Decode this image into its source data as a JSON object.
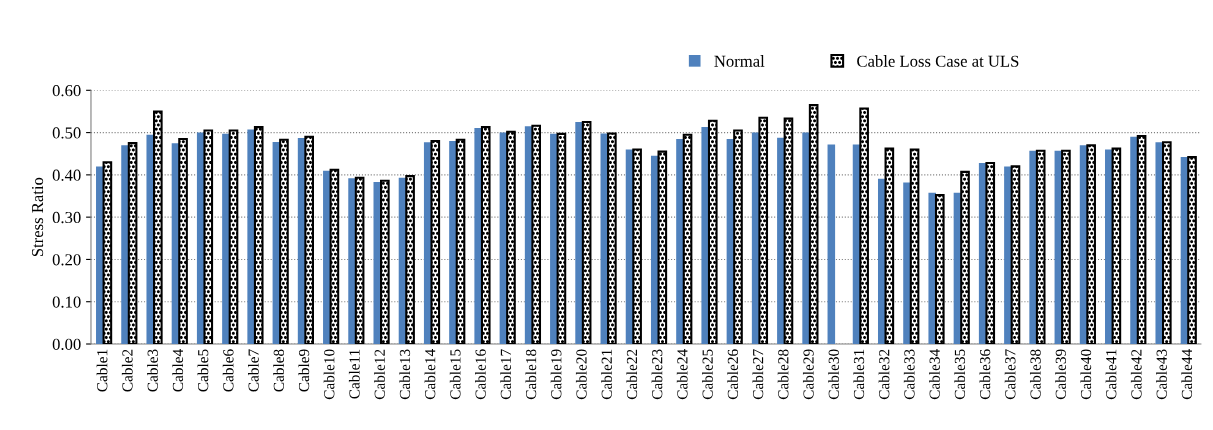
{
  "chart_data": {
    "type": "bar",
    "ylabel": "Stress Ratio",
    "categories": [
      "Cable1",
      "Cable2",
      "Cable3",
      "Cable4",
      "Cable5",
      "Cable6",
      "Cable7",
      "Cable8",
      "Cable9",
      "Cable10",
      "Cable11",
      "Cable12",
      "Cable13",
      "Cable14",
      "Cable15",
      "Cable16",
      "Cable17",
      "Cable18",
      "Cable19",
      "Cable20",
      "Cable21",
      "Cable22",
      "Cable23",
      "Cable24",
      "Cable25",
      "Cable26",
      "Cable27",
      "Cable28",
      "Cable29",
      "Cable30",
      "Cable31",
      "Cable32",
      "Cable33",
      "Cable34",
      "Cable35",
      "Cable36",
      "Cable37",
      "Cable38",
      "Cable39",
      "Cable40",
      "Cable41",
      "Cable42",
      "Cable43",
      "Cable44"
    ],
    "series": [
      {
        "name": "Normal",
        "color": "#4f81bd",
        "values": [
          0.42,
          0.47,
          0.495,
          0.475,
          0.5,
          0.497,
          0.507,
          0.478,
          0.487,
          0.41,
          0.392,
          0.383,
          0.393,
          0.477,
          0.48,
          0.511,
          0.5,
          0.515,
          0.497,
          0.525,
          0.498,
          0.46,
          0.445,
          0.485,
          0.513,
          0.485,
          0.5,
          0.488,
          0.5,
          0.472,
          0.472,
          0.391,
          0.382,
          0.358,
          0.358,
          0.428,
          0.42,
          0.457,
          0.457,
          0.47,
          0.46,
          0.49,
          0.477,
          0.442
        ]
      },
      {
        "name": "Cable Loss Case at ULS",
        "color": "#000000",
        "values": [
          0.43,
          0.475,
          0.55,
          0.485,
          0.505,
          0.505,
          0.513,
          0.483,
          0.49,
          0.412,
          0.393,
          0.386,
          0.397,
          0.48,
          0.483,
          0.513,
          0.502,
          0.516,
          0.497,
          0.525,
          0.498,
          0.46,
          0.455,
          0.495,
          0.528,
          0.505,
          0.535,
          0.533,
          0.565,
          null,
          0.557,
          0.462,
          0.46,
          0.352,
          0.407,
          0.428,
          0.42,
          0.457,
          0.457,
          0.47,
          0.462,
          0.492,
          0.477,
          0.442
        ]
      }
    ],
    "ylim": [
      0,
      0.6
    ],
    "yticks": [
      {
        "value": 0,
        "label": "0.00"
      },
      {
        "value": 0.1,
        "label": "0.10"
      },
      {
        "value": 0.2,
        "label": "0.20"
      },
      {
        "value": 0.3,
        "label": "0.30"
      },
      {
        "value": 0.4,
        "label": "0.40"
      },
      {
        "value": 0.5,
        "label": "0.50"
      },
      {
        "value": 0.6,
        "label": "0.60"
      }
    ],
    "grid": "y",
    "legend": "top right"
  }
}
